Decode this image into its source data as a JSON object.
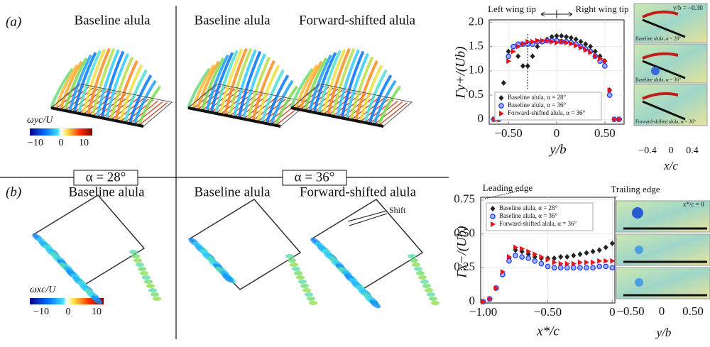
{
  "panels": {
    "a": {
      "label": "(a)",
      "titles": [
        "Baseline alula",
        "Baseline alula",
        "Forward-shifted alula"
      ],
      "colorbar": {
        "label": "ωyc/U",
        "ticks": [
          "−10",
          "0",
          "10"
        ]
      }
    },
    "alpha": [
      "α = 28°",
      "α = 36°"
    ],
    "b": {
      "label": "(b)",
      "titles": [
        "Baseline alula",
        "Baseline alula",
        "Forward-shifted alula"
      ],
      "colorbar": {
        "label": "ωxc/U",
        "ticks": [
          "−10",
          "0",
          "10"
        ]
      },
      "shift": "Shift"
    }
  },
  "chart_data": [
    {
      "type": "scatter",
      "ylabel": "Γy+/(Ub)",
      "xlabel": "y/b",
      "annotations": [
        "Left wing tip",
        "Right wing tip"
      ],
      "legend": "lower left",
      "x": [
        -0.65,
        -0.6,
        -0.55,
        -0.5,
        -0.45,
        -0.4,
        -0.35,
        -0.3,
        -0.25,
        -0.2,
        -0.15,
        -0.1,
        -0.05,
        0,
        0.05,
        0.1,
        0.15,
        0.2,
        0.25,
        0.3,
        0.35,
        0.4,
        0.45,
        0.5,
        0.55,
        0.6,
        0.65
      ],
      "series": [
        {
          "name": "Baseline alula, α = 28°",
          "color": "#222222",
          "marker": "diamond",
          "values": [
            0,
            0,
            0.75,
            1.4,
            1.5,
            1.3,
            1.1,
            1.1,
            1.3,
            1.5,
            1.6,
            1.65,
            1.7,
            1.72,
            1.72,
            1.7,
            1.68,
            1.65,
            1.6,
            1.55,
            1.5,
            1.4,
            1.3,
            1.2,
            0.6,
            0,
            0
          ]
        },
        {
          "name": "Baseline alula, α = 36°",
          "color": "#1f3fff",
          "marker": "circle",
          "values": [
            0,
            0,
            0.5,
            1.3,
            1.5,
            1.55,
            1.55,
            1.55,
            1.55,
            1.6,
            1.6,
            1.62,
            1.62,
            1.62,
            1.6,
            1.6,
            1.58,
            1.55,
            1.5,
            1.45,
            1.4,
            1.3,
            1.2,
            1.1,
            0.5,
            0,
            0
          ]
        },
        {
          "name": "Forward-shifted alula, α = 36°",
          "color": "#e8141b",
          "marker": "triangle",
          "values": [
            0,
            0,
            0.4,
            1.2,
            1.4,
            1.5,
            1.55,
            1.6,
            1.6,
            1.62,
            1.62,
            1.62,
            1.6,
            1.58,
            1.6,
            1.58,
            1.56,
            1.52,
            1.48,
            1.43,
            1.38,
            1.3,
            1.25,
            1.2,
            0.6,
            0,
            0
          ]
        }
      ],
      "xlim": [
        -0.7,
        0.7
      ],
      "ylim": [
        -0.1,
        2.05
      ],
      "xticks": [
        {
          "value": -0.5,
          "label": "−0.50"
        },
        0,
        {
          "value": 0.5,
          "label": "0.50"
        }
      ],
      "yticks": [
        0,
        0.5,
        {
          "value": 1,
          "label": "1.0"
        },
        1.5,
        {
          "value": 2,
          "label": "2.0"
        }
      ]
    },
    {
      "type": "scatter",
      "ylabel": "Γx−/(Ub)",
      "xlabel": "x*/c",
      "annotations": [
        "Leading edge",
        "Trailing edge"
      ],
      "legend": "upper left",
      "x": [
        -1,
        -0.95,
        -0.9,
        -0.85,
        -0.8,
        -0.75,
        -0.7,
        -0.65,
        -0.6,
        -0.55,
        -0.5,
        -0.45,
        -0.4,
        -0.35,
        -0.3,
        -0.25,
        -0.2,
        -0.15,
        -0.1,
        -0.05,
        0
      ],
      "series": [
        {
          "name": "Baseline alula, α = 28°",
          "color": "#222222",
          "marker": "diamond",
          "values": [
            0,
            0.02,
            0.1,
            0.2,
            0.32,
            0.38,
            0.37,
            0.35,
            0.33,
            0.32,
            0.32,
            0.32,
            0.33,
            0.33,
            0.34,
            0.35,
            0.36,
            0.37,
            0.38,
            0.4,
            0.43
          ]
        },
        {
          "name": "Baseline alula, α = 36°",
          "color": "#1f3fff",
          "marker": "circle",
          "values": [
            0,
            0.02,
            0.1,
            0.2,
            0.3,
            0.34,
            0.33,
            0.32,
            0.3,
            0.28,
            0.26,
            0.25,
            0.25,
            0.25,
            0.25,
            0.25,
            0.25,
            0.25,
            0.26,
            0.26,
            0.25
          ]
        },
        {
          "name": "Forward-shifted alula, α = 36°",
          "color": "#e8141b",
          "marker": "triangle",
          "values": [
            0,
            0.02,
            0.1,
            0.22,
            0.33,
            0.4,
            0.39,
            0.37,
            0.35,
            0.33,
            0.31,
            0.29,
            0.28,
            0.28,
            0.28,
            0.29,
            0.29,
            0.29,
            0.3,
            0.3,
            0.3
          ]
        }
      ],
      "xlim": [
        -1.02,
        0.02
      ],
      "ylim": [
        -0.01,
        0.77
      ],
      "xticks": [
        {
          "value": -1,
          "label": "−1.00"
        },
        {
          "value": -0.5,
          "label": "−0.50"
        },
        0
      ],
      "yticks": [
        0,
        0.25,
        {
          "value": 0.5,
          "label": "0.50"
        },
        0.75
      ]
    }
  ],
  "insets": {
    "top": {
      "heading": "y/b = −0.30",
      "captions": [
        "Baseline alula, α = 28°",
        "Baseline alula, α = 36°",
        "Forward-shifted alula, α = 36°"
      ],
      "ticks": [
        "−0.4",
        "0",
        "0.4"
      ],
      "xlabel": "x/c"
    },
    "bottom": {
      "heading": "x*/c = 0",
      "ticks": [
        "−0.50",
        "0",
        "0.50"
      ],
      "xlabel": "y/b"
    }
  }
}
